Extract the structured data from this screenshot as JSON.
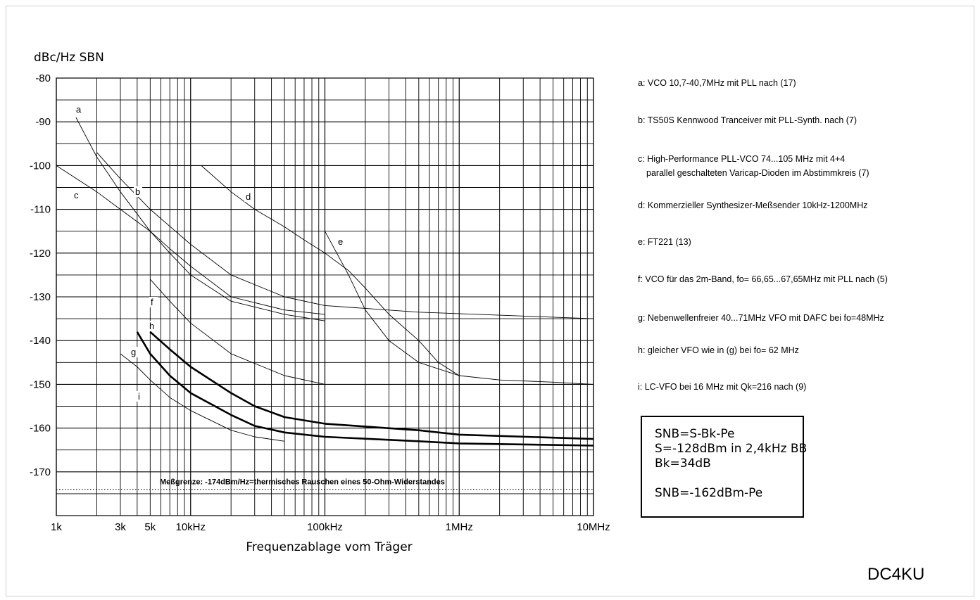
{
  "chart_data": {
    "type": "line",
    "x_scale": "log",
    "xlabel": "Frequenzablage vom Träger",
    "ylabel": "dBc/Hz  SBN",
    "xlim": [
      1000,
      10000000
    ],
    "ylim": [
      -180,
      -80
    ],
    "x_ticks": [
      {
        "value": 1000,
        "label": "1k"
      },
      {
        "value": 3000,
        "label": "3k"
      },
      {
        "value": 5000,
        "label": "5k"
      },
      {
        "value": 10000,
        "label": "10kHz"
      },
      {
        "value": 100000,
        "label": "100kHz"
      },
      {
        "value": 1000000,
        "label": "1MHz"
      },
      {
        "value": 10000000,
        "label": "10MHz"
      }
    ],
    "y_ticks": [
      -80,
      -90,
      -100,
      -110,
      -120,
      -130,
      -140,
      -150,
      -160,
      -170
    ],
    "grid": true,
    "reference_line": {
      "y": -174,
      "label": "Meßgrenze: -174dBm/Hz=thermisches Rauschen eines 50-Ohm-Widerstandes"
    },
    "series": [
      {
        "name": "a",
        "weight": "thin",
        "points": [
          [
            1400,
            -89
          ],
          [
            2000,
            -98
          ],
          [
            3000,
            -106
          ],
          [
            5000,
            -115
          ],
          [
            7000,
            -120
          ],
          [
            10000,
            -125
          ],
          [
            20000,
            -131
          ],
          [
            50000,
            -134
          ],
          [
            100000,
            -135.5
          ]
        ]
      },
      {
        "name": "b",
        "weight": "thin",
        "points": [
          [
            2000,
            -97
          ],
          [
            3000,
            -103
          ],
          [
            5000,
            -110
          ],
          [
            10000,
            -118
          ],
          [
            20000,
            -125
          ],
          [
            50000,
            -130
          ],
          [
            100000,
            -132
          ],
          [
            500000,
            -133.5
          ],
          [
            10000000,
            -135
          ]
        ]
      },
      {
        "name": "c",
        "weight": "thin",
        "points": [
          [
            1000,
            -100
          ],
          [
            2000,
            -106
          ],
          [
            3000,
            -110
          ],
          [
            5000,
            -115
          ],
          [
            7000,
            -119
          ],
          [
            10000,
            -123
          ],
          [
            20000,
            -130
          ],
          [
            50000,
            -133
          ],
          [
            100000,
            -134
          ]
        ]
      },
      {
        "name": "d",
        "weight": "thin",
        "points": [
          [
            12000,
            -100
          ],
          [
            20000,
            -106
          ],
          [
            30000,
            -110
          ],
          [
            50000,
            -114
          ],
          [
            70000,
            -117
          ],
          [
            100000,
            -120
          ],
          [
            150000,
            -124
          ],
          [
            200000,
            -128
          ],
          [
            300000,
            -134
          ],
          [
            500000,
            -140
          ],
          [
            700000,
            -145
          ],
          [
            1000000,
            -148
          ]
        ]
      },
      {
        "name": "e",
        "weight": "thin",
        "points": [
          [
            100000,
            -115
          ],
          [
            150000,
            -125
          ],
          [
            200000,
            -133
          ],
          [
            300000,
            -140
          ],
          [
            500000,
            -145
          ],
          [
            1000000,
            -148
          ],
          [
            2000000,
            -149
          ],
          [
            5000000,
            -149.5
          ],
          [
            10000000,
            -150
          ]
        ]
      },
      {
        "name": "f",
        "weight": "thin",
        "points": [
          [
            5000,
            -126
          ],
          [
            7000,
            -131
          ],
          [
            10000,
            -136
          ],
          [
            20000,
            -143
          ],
          [
            50000,
            -148
          ],
          [
            100000,
            -150
          ]
        ]
      },
      {
        "name": "g",
        "weight": "bold",
        "points": [
          [
            4000,
            -138
          ],
          [
            5000,
            -143
          ],
          [
            7000,
            -148
          ],
          [
            10000,
            -152
          ],
          [
            20000,
            -157
          ],
          [
            30000,
            -159.5
          ],
          [
            50000,
            -161
          ],
          [
            100000,
            -162
          ],
          [
            500000,
            -163
          ],
          [
            1000000,
            -163.5
          ],
          [
            10000000,
            -164
          ]
        ]
      },
      {
        "name": "h",
        "weight": "bold",
        "points": [
          [
            5000,
            -138
          ],
          [
            7000,
            -142
          ],
          [
            10000,
            -146
          ],
          [
            20000,
            -152
          ],
          [
            30000,
            -155
          ],
          [
            50000,
            -157.5
          ],
          [
            100000,
            -159
          ],
          [
            500000,
            -160.5
          ],
          [
            1000000,
            -161.5
          ],
          [
            10000000,
            -162.5
          ]
        ]
      },
      {
        "name": "i",
        "weight": "thin",
        "points": [
          [
            3000,
            -143
          ],
          [
            4000,
            -146
          ],
          [
            5000,
            -149
          ],
          [
            7000,
            -153
          ],
          [
            10000,
            -156
          ],
          [
            20000,
            -160.5
          ],
          [
            30000,
            -162
          ],
          [
            50000,
            -163
          ]
        ]
      }
    ]
  },
  "legend_items": [
    {
      "key": "a",
      "line1": "a: VCO 10,7-40,7MHz mit PLL nach (17)",
      "line2": ""
    },
    {
      "key": "b",
      "line1": "b: TS50S Kennwood Tranceiver mit PLL-Synth. nach (7)",
      "line2": ""
    },
    {
      "key": "c",
      "line1": "c: High-Performance PLL-VCO 74...105 MHz mit 4+4",
      "line2": "parallel geschalteten Varicap-Dioden im Abstimmkreis (7)"
    },
    {
      "key": "d",
      "line1": "d: Kommerzieller Synthesizer-Meßsender 10kHz-1200MHz",
      "line2": ""
    },
    {
      "key": "e",
      "line1": "e: FT221 (13)",
      "line2": ""
    },
    {
      "key": "f",
      "line1": "f: VCO für das 2m-Band, fo= 66,65...67,65MHz mit PLL nach (5)",
      "line2": ""
    },
    {
      "key": "g",
      "line1": "g: Nebenwellenfreier 40...71MHz VFO mit DAFC bei fo=48MHz",
      "line2": ""
    },
    {
      "key": "h",
      "line1": "h: gleicher VFO wie in (g) bei fo= 62 MHz",
      "line2": ""
    },
    {
      "key": "i",
      "line1": "i: LC-VFO bei 16 MHz mit Qk=216 nach (9)",
      "line2": ""
    }
  ],
  "formula_box": {
    "line1": "SNB=S-Bk-Pe",
    "line2": "S=-128dBm in 2,4kHz BB",
    "line3": "Bk=34dB",
    "line4": "",
    "line5": "SNB=-162dBm-Pe"
  },
  "author": "DC4KU"
}
